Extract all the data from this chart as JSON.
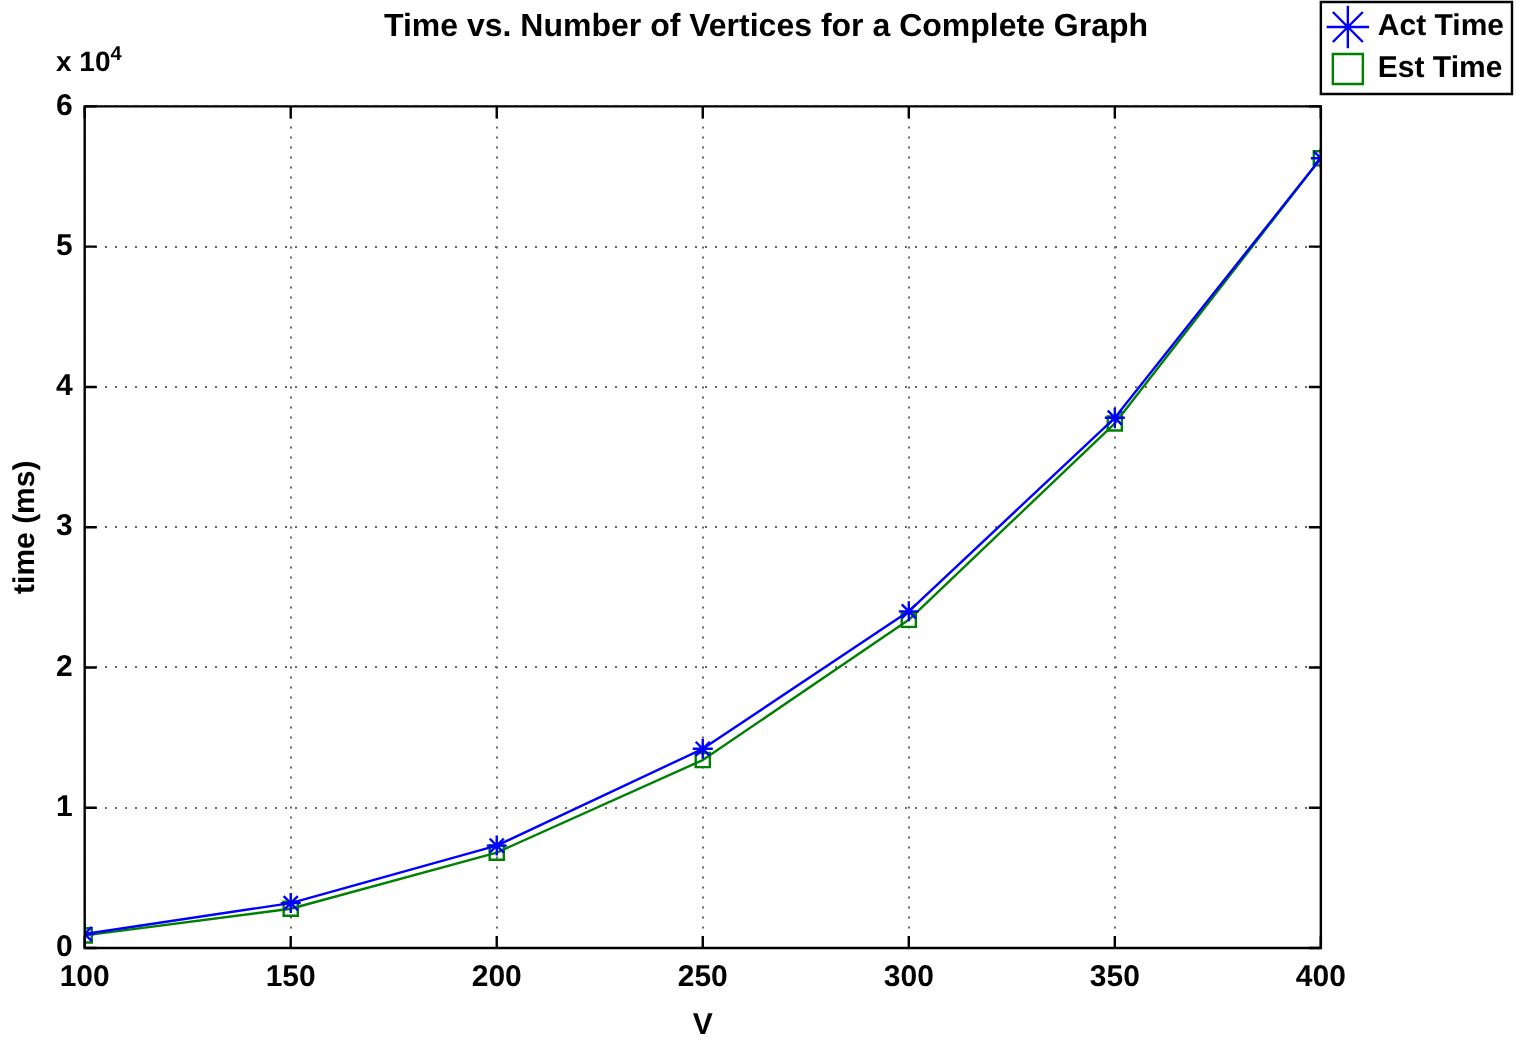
{
  "chart_data": {
    "type": "line",
    "title": "Time vs. Number of Vertices for a Complete Graph",
    "xlabel": "V",
    "ylabel": "time (ms)",
    "annotations": [
      "x 10$^{4}$"
    ],
    "x": [
      100,
      150,
      200,
      250,
      300,
      350,
      400
    ],
    "series": [
      {
        "name": "Act Time",
        "color": "#0000ff",
        "marker": "cross",
        "values": [
          0.1,
          0.32,
          0.73,
          1.42,
          2.4,
          3.78,
          5.63
        ]
      },
      {
        "name": "Est Time",
        "color": "#008000",
        "marker": "square",
        "values": [
          0.09,
          0.28,
          0.68,
          1.34,
          2.34,
          3.74,
          5.63
        ]
      }
    ],
    "xlim": [
      100,
      400
    ],
    "xticks": [
      100,
      150,
      200,
      250,
      300,
      350,
      400
    ],
    "ylim": [
      0,
      6
    ],
    "yticks": [
      0,
      1,
      2,
      3,
      4,
      5,
      6
    ],
    "grid": true,
    "legend": "top right",
    "line_style": "solid"
  }
}
